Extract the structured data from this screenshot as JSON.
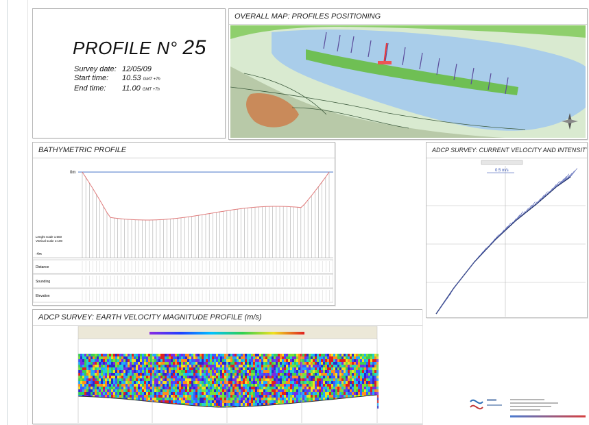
{
  "profile": {
    "title": "PROFILE",
    "number_sign": "N°",
    "number": "25",
    "survey_date_label": "Survey date:",
    "survey_date": "12/05/09",
    "start_time_label": "Start time:",
    "start_time": "10.53",
    "end_time_label": "End time:",
    "end_time": "11.00",
    "time_zone": "GMT +7h"
  },
  "map_panel": {
    "title": "OVERALL MAP:  PROFILES POSITIONING"
  },
  "bathy_panel": {
    "title": "BATHYMETRIC PROFILE",
    "scale_lines": [
      "Lenght scale 1:500",
      "Vertical scale 1:100"
    ],
    "top_label": "0m",
    "bottom_label": "-4m",
    "row_labels": [
      "Distance",
      "Sounding",
      "Elevation"
    ]
  },
  "adcp_current_panel": {
    "title": "ADCP SURVEY: CURRENT VELOCITY AND INTENSITY",
    "scale_label": "0.5 m/s"
  },
  "adcp_earth_panel": {
    "title": "ADCP SURVEY: EARTH VELOCITY MAGNITUDE PROFILE (m/s)"
  },
  "colors": {
    "water": "#a9cdea",
    "land_green": "#6fbf54",
    "bathy_curve": "#e07a7a",
    "waterline": "#4a74c9"
  }
}
